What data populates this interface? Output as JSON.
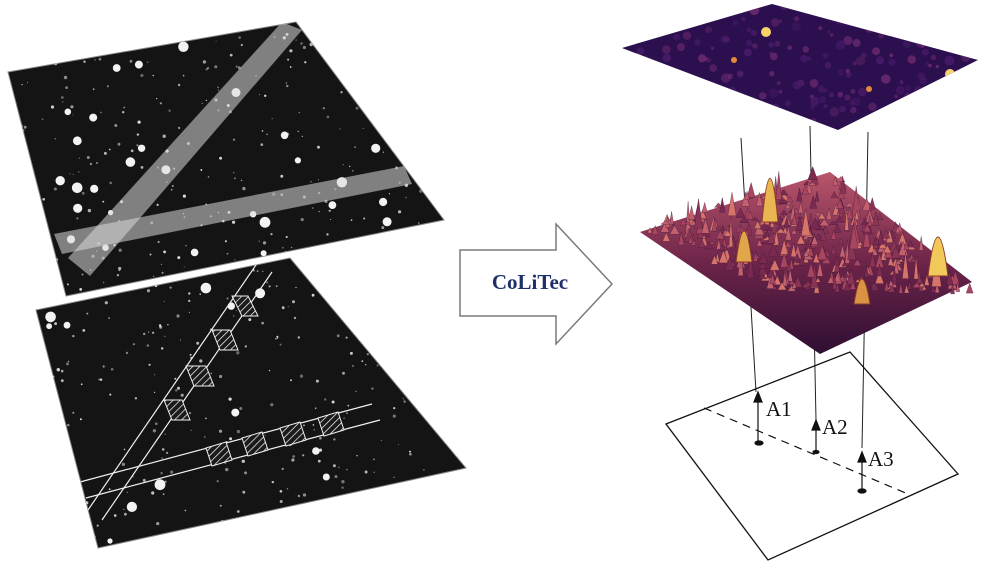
{
  "process_arrow": {
    "label": "CoLiTec"
  },
  "amplitude_labels": [
    "A1",
    "A2",
    "A3"
  ],
  "colors": {
    "sky": "#141414",
    "streak": "#d9d9d9",
    "heatmap_low": "#2b0f4e",
    "heatmap_high": "#f7d26b",
    "arrow_text": "#1f2f6e",
    "outline": "#111111"
  },
  "icons": {
    "star_field_top": "star-field-image",
    "star_field_bottom": "annotated-star-field-image",
    "process": "right-arrow-icon",
    "heatmap": "heatmap-plane",
    "surface": "3d-surface-plot",
    "projection": "projection-plane"
  }
}
